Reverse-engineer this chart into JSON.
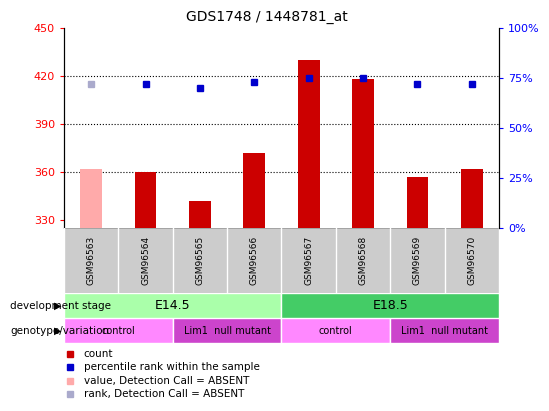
{
  "title": "GDS1748 / 1448781_at",
  "samples": [
    "GSM96563",
    "GSM96564",
    "GSM96565",
    "GSM96566",
    "GSM96567",
    "GSM96568",
    "GSM96569",
    "GSM96570"
  ],
  "count_values": [
    362,
    360,
    342,
    372,
    430,
    418,
    357,
    362
  ],
  "count_absent": [
    true,
    false,
    false,
    false,
    false,
    false,
    false,
    false
  ],
  "rank_values": [
    72,
    72,
    70,
    73,
    75,
    75,
    72,
    72
  ],
  "rank_absent": [
    true,
    false,
    false,
    false,
    false,
    false,
    false,
    false
  ],
  "ylim_left": [
    325,
    450
  ],
  "ylim_right": [
    0,
    100
  ],
  "yticks_left": [
    330,
    360,
    390,
    420,
    450
  ],
  "yticks_right": [
    0,
    25,
    50,
    75,
    100
  ],
  "grid_values": [
    360,
    390,
    420
  ],
  "bar_color": "#cc0000",
  "bar_absent_color": "#ffaaaa",
  "rank_color": "#0000cc",
  "rank_absent_color": "#aaaacc",
  "background_color": "#ffffff",
  "dev_stage_row": [
    {
      "label": "E14.5",
      "start": 0,
      "end": 4,
      "color": "#aaffaa"
    },
    {
      "label": "E18.5",
      "start": 4,
      "end": 8,
      "color": "#44cc66"
    }
  ],
  "geno_row": [
    {
      "label": "control",
      "start": 0,
      "end": 2,
      "color": "#ff88ff"
    },
    {
      "label": "Lim1  null mutant",
      "start": 2,
      "end": 4,
      "color": "#cc44cc"
    },
    {
      "label": "control",
      "start": 4,
      "end": 6,
      "color": "#ff88ff"
    },
    {
      "label": "Lim1  null mutant",
      "start": 6,
      "end": 8,
      "color": "#cc44cc"
    }
  ],
  "legend_items": [
    {
      "label": "count",
      "color": "#cc0000"
    },
    {
      "label": "percentile rank within the sample",
      "color": "#0000cc"
    },
    {
      "label": "value, Detection Call = ABSENT",
      "color": "#ffaaaa"
    },
    {
      "label": "rank, Detection Call = ABSENT",
      "color": "#aaaacc"
    }
  ]
}
